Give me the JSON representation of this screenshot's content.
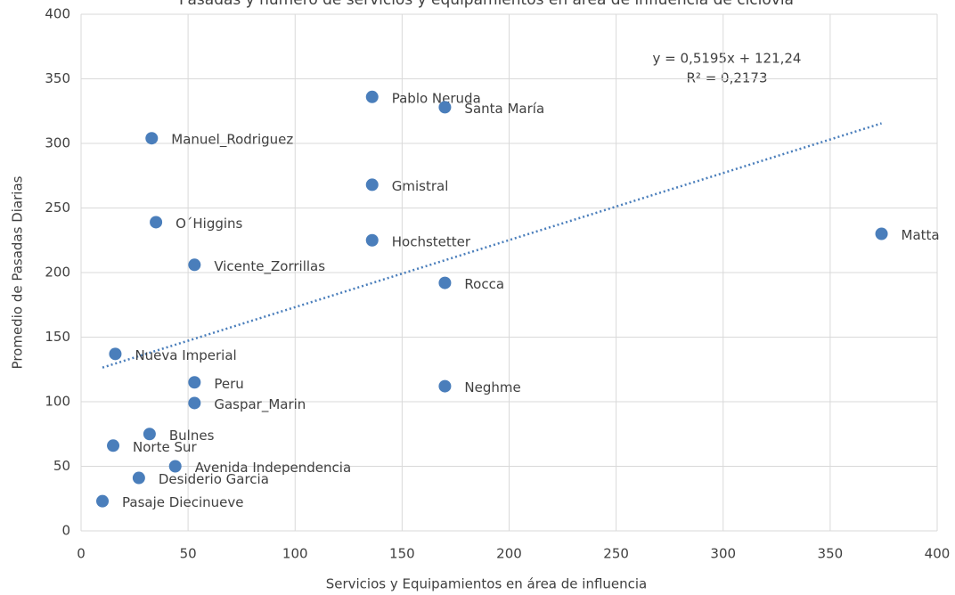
{
  "chart_data": {
    "type": "scatter",
    "title": "Pasadas y número de servicios y equipamientos en área de influencia de ciclovía",
    "x_label": "Servicios y Equipamientos en área de influencia",
    "y_label": "Promedio de Pasadas Diarias",
    "xlim": [
      0,
      400
    ],
    "xticks": [
      0,
      50,
      100,
      150,
      200,
      250,
      300,
      350,
      400
    ],
    "ylim": [
      0,
      400
    ],
    "yticks": [
      0,
      50,
      100,
      150,
      200,
      250,
      300,
      350,
      400
    ],
    "grid": true,
    "color": "#4a7ebb",
    "labels": [
      "Pablo Neruda",
      "Santa María",
      "Manuel_Rodriguez",
      "Gmistral",
      "O´Higgins",
      "Hochstetter",
      "Matta",
      "Vicente_Zorrillas",
      "Rocca",
      "Nueva Imperial",
      "Peru",
      "Neghme",
      "Gaspar_Marin",
      "Bulnes",
      "Norte Sur",
      "Avenida Independencia",
      "Desiderio Garcia",
      "Pasaje Diecinueve"
    ],
    "x": [
      136,
      170,
      33,
      136,
      35,
      136,
      374,
      53,
      170,
      16,
      53,
      170,
      53,
      32,
      15,
      44,
      27,
      10
    ],
    "values": [
      336,
      328,
      304,
      268,
      239,
      225,
      230,
      206,
      192,
      137,
      115,
      112,
      99,
      75,
      66,
      50,
      41,
      23
    ],
    "trendline": {
      "slope": 0.5195,
      "intercept": 121.24,
      "color": "#4a7ebb",
      "equation": "y = 0,5195x + 121,24",
      "r2": "R² = 0,2173"
    }
  }
}
